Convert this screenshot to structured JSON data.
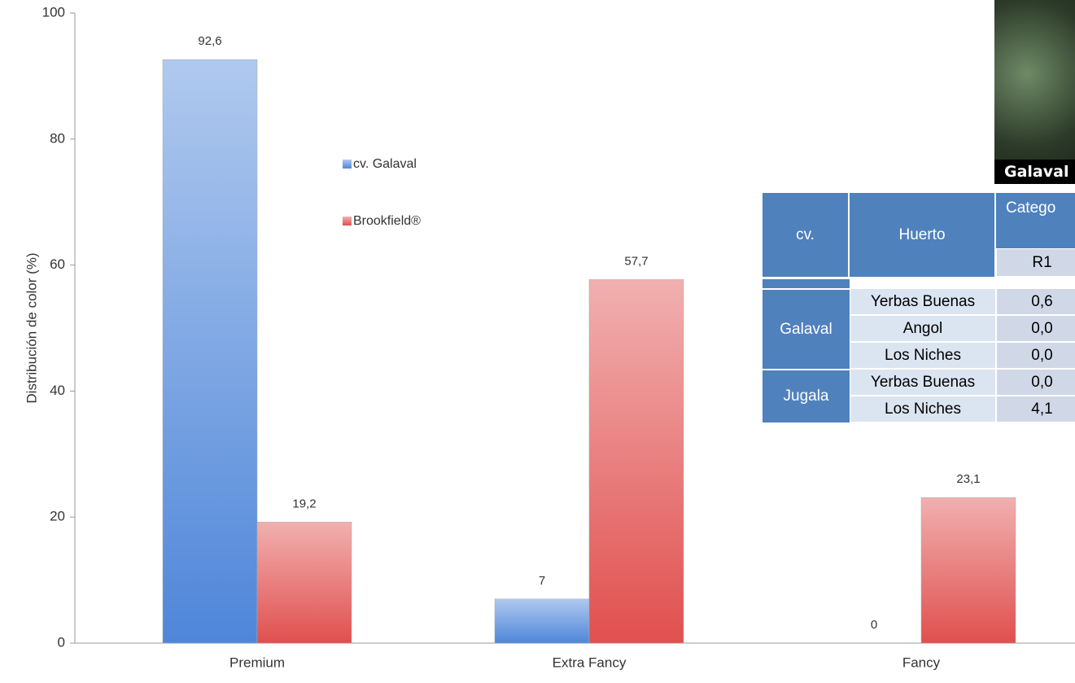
{
  "chart_data": {
    "type": "bar",
    "y_label": "Distribución de color (%)",
    "categories": [
      "Premium",
      "Extra Fancy",
      "Fancy"
    ],
    "series": [
      {
        "name": "cv. Galaval",
        "color": "#4f86d9",
        "values": [
          92.6,
          7,
          0
        ],
        "value_labels": [
          "92,6",
          "7",
          "0"
        ]
      },
      {
        "name": "Brookfield®",
        "color": "#e0504f",
        "values": [
          19.2,
          57.7,
          23.1
        ],
        "value_labels": [
          "19,2",
          "57,7",
          "23,1"
        ]
      }
    ],
    "ylim": [
      0,
      100
    ],
    "yticks": [
      0,
      20,
      40,
      60,
      80,
      100
    ],
    "grid": false
  },
  "photo": {
    "caption": "Galaval"
  },
  "table": {
    "header": [
      "cv.",
      "Huerto",
      "Catego"
    ],
    "subheader": "R1",
    "groups": [
      {
        "cv": "Galaval",
        "rows": [
          [
            "Yerbas Buenas",
            "0,6"
          ],
          [
            "Angol",
            "0,0"
          ],
          [
            "Los Niches",
            "0,0"
          ]
        ]
      },
      {
        "cv": "Jugala",
        "rows": [
          [
            "Yerbas Buenas",
            "0,0"
          ],
          [
            "Los Niches",
            "4,1"
          ]
        ]
      }
    ]
  }
}
